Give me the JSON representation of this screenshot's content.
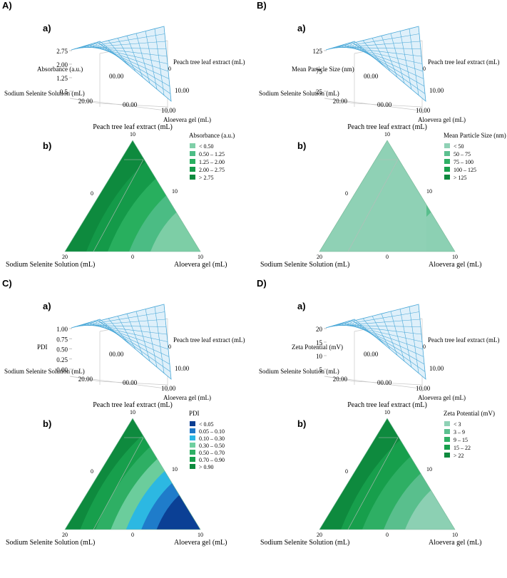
{
  "panel_letters": [
    "A)",
    "B)",
    "C)",
    "D)"
  ],
  "chart_data": [
    {
      "id": "A",
      "type": "surface-and-ternary-contour",
      "surface": {
        "label": "a)",
        "z_label": "Absorbance (a.u.)",
        "z_ticks": [
          "2.75",
          "2.00",
          "1.25",
          "0.5"
        ],
        "x_label": "Sodium Selenite Solution (mL)",
        "y_label": "Peach tree leaf extract (mL)",
        "w_label": "Aloevera gel (mL)",
        "center_label": "00.00",
        "ticks": [
          "20.00",
          "00.00",
          "10.00",
          "10.00"
        ],
        "edge_tick": "0"
      },
      "ternary": {
        "label": "b)",
        "top_label": "Peach tree leaf extract (mL)",
        "left_label": "Sodium Selenite Solution (mL)",
        "right_label": "Aloevera gel (mL)",
        "vertex_ticks": {
          "top": "10",
          "left": "20",
          "mid": "0",
          "right": "10",
          "left_edge": "0",
          "right_edge": "10"
        },
        "legend_title": "Absorbance (a.u.)",
        "legend": [
          {
            "label": "<  0.50",
            "color": "#7fcfa8"
          },
          {
            "label": "0.50 – 1.25",
            "color": "#4dbd86"
          },
          {
            "label": "1.25 – 2.00",
            "color": "#29b060"
          },
          {
            "label": "2.00 – 2.75",
            "color": "#159b4a"
          },
          {
            "label": ">  2.75",
            "color": "#0e8a3e"
          }
        ]
      }
    },
    {
      "id": "B",
      "type": "surface-and-ternary-contour",
      "surface": {
        "label": "a)",
        "z_label": "Mean Particle Size (nm)",
        "z_ticks": [
          "125",
          "75",
          "25"
        ],
        "x_label": "Sodium Selenite Solution (mL)",
        "y_label": "Peach tree leaf extract (mL)",
        "w_label": "Aloevera gel (mL)",
        "center_label": "00.00",
        "ticks": [
          "20.00",
          "00.00",
          "10.00",
          "10.00"
        ],
        "edge_tick": "0"
      },
      "ternary": {
        "label": "b)",
        "top_label": "Peach tree leaf extract (mL)",
        "left_label": "Sodium Selenite Solution (mL)",
        "right_label": "Aloevera gel (mL)",
        "vertex_ticks": {
          "top": "10",
          "left": "20",
          "mid": "0",
          "right": "10",
          "left_edge": "0",
          "right_edge": "10"
        },
        "legend_title": "Mean Particle Size (nm)",
        "legend": [
          {
            "label": "<   50",
            "color": "#8fd1b5"
          },
          {
            "label": "50   – 75",
            "color": "#5cc08f"
          },
          {
            "label": "75   – 100",
            "color": "#2fb065"
          },
          {
            "label": "100 – 125",
            "color": "#18a04d"
          },
          {
            "label": ">   125",
            "color": "#0e8a3e"
          }
        ]
      }
    },
    {
      "id": "C",
      "type": "surface-and-ternary-contour",
      "surface": {
        "label": "a)",
        "z_label": "PDI",
        "z_ticks": [
          "1.00",
          "0.75",
          "0.50",
          "0.25",
          "0.00"
        ],
        "x_label": "Sodium Selenite Solution (mL)",
        "y_label": "Peach tree leaf extract (mL)",
        "w_label": "Aloevera gel (mL)",
        "center_label": "00.00",
        "ticks": [
          "20.00",
          "00.00",
          "10.00",
          "10.00"
        ],
        "edge_tick": "0"
      },
      "ternary": {
        "label": "b)",
        "top_label": "Peach tree leaf extract (mL)",
        "left_label": "Sodium Selenite Solution (mL)",
        "right_label": "Aloevera gel (mL)",
        "vertex_ticks": {
          "top": "10",
          "left": "20",
          "mid": "0",
          "right": "10",
          "left_edge": "0",
          "right_edge": "10"
        },
        "legend_title": "PDI",
        "legend": [
          {
            "label": "<  0.05",
            "color": "#0b3d91"
          },
          {
            "label": "0.05  –  0.10",
            "color": "#1f78c8"
          },
          {
            "label": "0.10  –  0.30",
            "color": "#29b6e6"
          },
          {
            "label": "0.30  –  0.50",
            "color": "#6fcf9f"
          },
          {
            "label": "0.50  –  0.70",
            "color": "#2fb065"
          },
          {
            "label": "0.70  –  0.90",
            "color": "#18a04d"
          },
          {
            "label": ">  0.90",
            "color": "#0e8a3e"
          }
        ]
      }
    },
    {
      "id": "D",
      "type": "surface-and-ternary-contour",
      "surface": {
        "label": "a)",
        "z_label": "Zeta Potential (mV)",
        "z_ticks": [
          "20",
          "15",
          "10",
          "5"
        ],
        "x_label": "Sodium Selenite Solution (mL)",
        "y_label": "Peach tree leaf extract (mL)",
        "w_label": "Aloevera gel (mL)",
        "center_label": "00.00",
        "ticks": [
          "20.00",
          "00.00",
          "10.00",
          "10.00"
        ],
        "edge_tick": "0"
      },
      "ternary": {
        "label": "b)",
        "top_label": "Peach tree leaf extract (mL)",
        "left_label": "Sodium Selenite Solution (mL)",
        "right_label": "Aloevera gel (mL)",
        "vertex_ticks": {
          "top": "10",
          "left": "20",
          "mid": "0",
          "right": "10",
          "left_edge": "0",
          "right_edge": "10"
        },
        "legend_title": "Zeta Potential (mV)",
        "legend": [
          {
            "label": "<   3",
            "color": "#8fd1b5"
          },
          {
            "label": "3    –   9",
            "color": "#5cc08f"
          },
          {
            "label": "9    –   15",
            "color": "#2fb065"
          },
          {
            "label": "15  –   22",
            "color": "#18a04d"
          },
          {
            "label": ">   22",
            "color": "#0e8a3e"
          }
        ]
      }
    }
  ]
}
